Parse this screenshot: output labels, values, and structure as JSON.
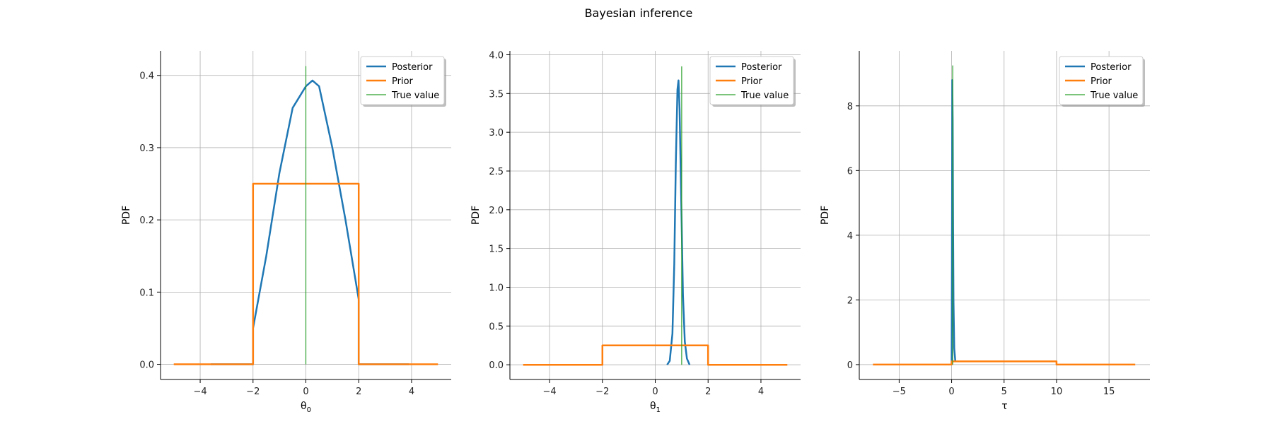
{
  "figure": {
    "title": "Bayesian inference"
  },
  "chart_data": [
    {
      "type": "line",
      "xlabel": "θ",
      "xlabel_sub": "0",
      "ylabel": "PDF",
      "xlim": [
        -5.5,
        5.5
      ],
      "ylim": [
        -0.021,
        0.434
      ],
      "xticks": [
        -4,
        -2,
        0,
        2,
        4
      ],
      "xtick_labels": [
        "−4",
        "−2",
        "0",
        "2",
        "4"
      ],
      "yticks": [
        0.0,
        0.1,
        0.2,
        0.3,
        0.4
      ],
      "ytick_labels": [
        "0.0",
        "0.1",
        "0.2",
        "0.3",
        "0.4"
      ],
      "grid": true,
      "legend": {
        "placement": "top-right",
        "entries": [
          "Posterior",
          "Prior",
          "True value"
        ]
      },
      "series": [
        {
          "name": "Posterior",
          "color": "#1f77b4",
          "x": [
            -3.6,
            -2.0,
            -2.0,
            -1.5,
            -1.0,
            -0.5,
            0.0,
            0.25,
            0.5,
            1.0,
            1.5,
            2.0,
            2.0,
            3.9
          ],
          "y": [
            0.0,
            0.0,
            0.05,
            0.15,
            0.265,
            0.355,
            0.385,
            0.393,
            0.385,
            0.3,
            0.2,
            0.09,
            0.0,
            0.0
          ]
        },
        {
          "name": "Prior",
          "color": "#ff7f0e",
          "x": [
            -5.0,
            -2.0,
            -2.0,
            2.0,
            2.0,
            5.0
          ],
          "y": [
            0.0,
            0.0,
            0.25,
            0.25,
            0.0,
            0.0
          ]
        },
        {
          "name": "True value",
          "color": "#2ca02c",
          "x": [
            0.0,
            0.0
          ],
          "y": [
            0.0,
            0.413
          ]
        }
      ]
    },
    {
      "type": "line",
      "xlabel": "θ",
      "xlabel_sub": "1",
      "ylabel": "PDF",
      "xlim": [
        -5.5,
        5.5
      ],
      "ylim": [
        -0.19,
        4.05
      ],
      "xticks": [
        -4,
        -2,
        0,
        2,
        4
      ],
      "xtick_labels": [
        "−4",
        "−2",
        "0",
        "2",
        "4"
      ],
      "yticks": [
        0.0,
        0.5,
        1.0,
        1.5,
        2.0,
        2.5,
        3.0,
        3.5,
        4.0
      ],
      "ytick_labels": [
        "0.0",
        "0.5",
        "1.0",
        "1.5",
        "2.0",
        "2.5",
        "3.0",
        "3.5",
        "4.0"
      ],
      "grid": true,
      "legend": {
        "placement": "top-right",
        "entries": [
          "Posterior",
          "Prior",
          "True value"
        ]
      },
      "series": [
        {
          "name": "Posterior",
          "color": "#1f77b4",
          "x": [
            0.45,
            0.55,
            0.65,
            0.72,
            0.78,
            0.84,
            0.88,
            0.92,
            0.98,
            1.05,
            1.12,
            1.2,
            1.3
          ],
          "y": [
            0.0,
            0.05,
            0.4,
            1.3,
            2.6,
            3.55,
            3.67,
            3.3,
            2.2,
            0.9,
            0.3,
            0.08,
            0.0
          ]
        },
        {
          "name": "Prior",
          "color": "#ff7f0e",
          "x": [
            -5.0,
            -2.0,
            -2.0,
            2.0,
            2.0,
            5.0
          ],
          "y": [
            0.0,
            0.0,
            0.25,
            0.25,
            0.0,
            0.0
          ]
        },
        {
          "name": "True value",
          "color": "#2ca02c",
          "x": [
            1.0,
            1.0
          ],
          "y": [
            0.0,
            3.85
          ]
        }
      ]
    },
    {
      "type": "line",
      "xlabel": "τ",
      "xlabel_sub": "",
      "ylabel": "PDF",
      "xlim": [
        -8.8,
        18.9
      ],
      "ylim": [
        -0.46,
        9.7
      ],
      "xticks": [
        -5,
        0,
        5,
        10,
        15
      ],
      "xtick_labels": [
        "−5",
        "0",
        "5",
        "10",
        "15"
      ],
      "yticks": [
        0,
        2,
        4,
        6,
        8
      ],
      "ytick_labels": [
        "0",
        "2",
        "4",
        "6",
        "8"
      ],
      "grid": true,
      "legend": {
        "placement": "top-right",
        "entries": [
          "Posterior",
          "Prior",
          "True value"
        ]
      },
      "series": [
        {
          "name": "Posterior",
          "color": "#1f77b4",
          "x": [
            0.0,
            0.03,
            0.06,
            0.1,
            0.14,
            0.18,
            0.25,
            0.35
          ],
          "y": [
            0.0,
            3.0,
            8.8,
            7.5,
            4.5,
            2.0,
            0.5,
            0.1
          ]
        },
        {
          "name": "Prior",
          "color": "#ff7f0e",
          "x": [
            -7.5,
            0.0,
            0.0,
            10.0,
            10.0,
            17.5
          ],
          "y": [
            0.0,
            0.0,
            0.1,
            0.1,
            0.0,
            0.0
          ]
        },
        {
          "name": "True value",
          "color": "#2ca02c",
          "x": [
            0.1,
            0.1
          ],
          "y": [
            0.0,
            9.25
          ]
        }
      ]
    }
  ]
}
